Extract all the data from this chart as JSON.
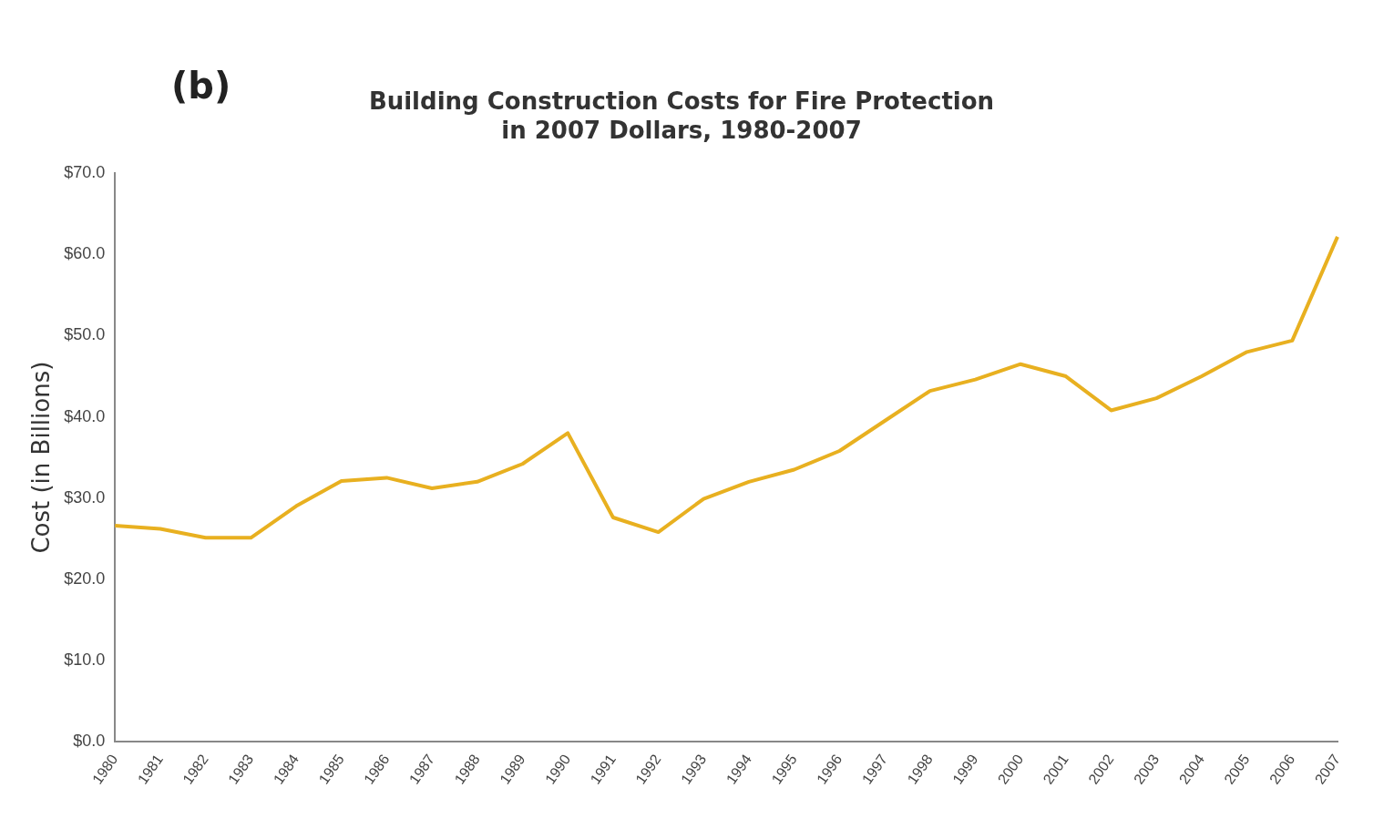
{
  "chart_data": {
    "type": "line",
    "title": [
      "Building Construction Costs for Fire Protection",
      "in 2007 Dollars, 1980-2007"
    ],
    "ylabel": "Cost (in Billions)",
    "annotations": [
      "(b)"
    ],
    "categories": [
      "1980",
      "1981",
      "1982",
      "1983",
      "1984",
      "1985",
      "1986",
      "1987",
      "1988",
      "1989",
      "1990",
      "1991",
      "1992",
      "1993",
      "1994",
      "1995",
      "1996",
      "1997",
      "1998",
      "1999",
      "2000",
      "2001",
      "2002",
      "2003",
      "2004",
      "2005",
      "2006",
      "2007"
    ],
    "series": [
      {
        "color": "#e8b020",
        "values": [
          26.6,
          26.2,
          25.1,
          25.1,
          29.0,
          32.1,
          32.5,
          31.2,
          32.0,
          34.2,
          38.0,
          27.6,
          25.8,
          29.9,
          32.0,
          33.5,
          35.8,
          39.5,
          43.2,
          44.6,
          46.5,
          45.0,
          40.8,
          42.3,
          45.0,
          48.0,
          49.4,
          62.2
        ]
      }
    ],
    "ylim": [
      0,
      70
    ],
    "yticks": [
      {
        "value": 0,
        "label": "$0.0"
      },
      {
        "value": 10,
        "label": "$10.0"
      },
      {
        "value": 20,
        "label": "$20.0"
      },
      {
        "value": 30,
        "label": "$30.0"
      },
      {
        "value": 40,
        "label": "$40.0"
      },
      {
        "value": 50,
        "label": "$50.0"
      },
      {
        "value": 60,
        "label": "$60.0"
      },
      {
        "value": 70,
        "label": "$70.0"
      }
    ],
    "grid": false,
    "legend": false,
    "marker": "none",
    "line_style": "solid"
  }
}
